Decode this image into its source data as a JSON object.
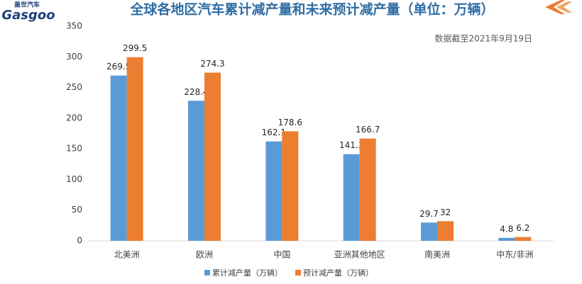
{
  "logo": {
    "name": "盖世汽车",
    "brand": "Gasgoo"
  },
  "chart_data": {
    "type": "bar",
    "title": "全球各地区汽车累计减产量和未来预计减产量（单位：万辆）",
    "annotation": "数据截至2021年9月19日",
    "categories": [
      "北美洲",
      "欧洲",
      "中国",
      "亚洲其他地区",
      "南美洲",
      "中东/非洲"
    ],
    "series": [
      {
        "name": "累计减产量（万辆）",
        "color": "#5b9bd5",
        "values": [
          269.5,
          228.4,
          162.1,
          141.3,
          29.7,
          4.8
        ]
      },
      {
        "name": "预计减产量（万辆）",
        "color": "#ed7d31",
        "values": [
          299.5,
          274.3,
          178.6,
          166.7,
          32,
          6.2
        ]
      }
    ],
    "ylim": [
      0,
      350
    ],
    "yticks": [
      0,
      50,
      100,
      150,
      200,
      250,
      300,
      350
    ],
    "grid": false
  }
}
